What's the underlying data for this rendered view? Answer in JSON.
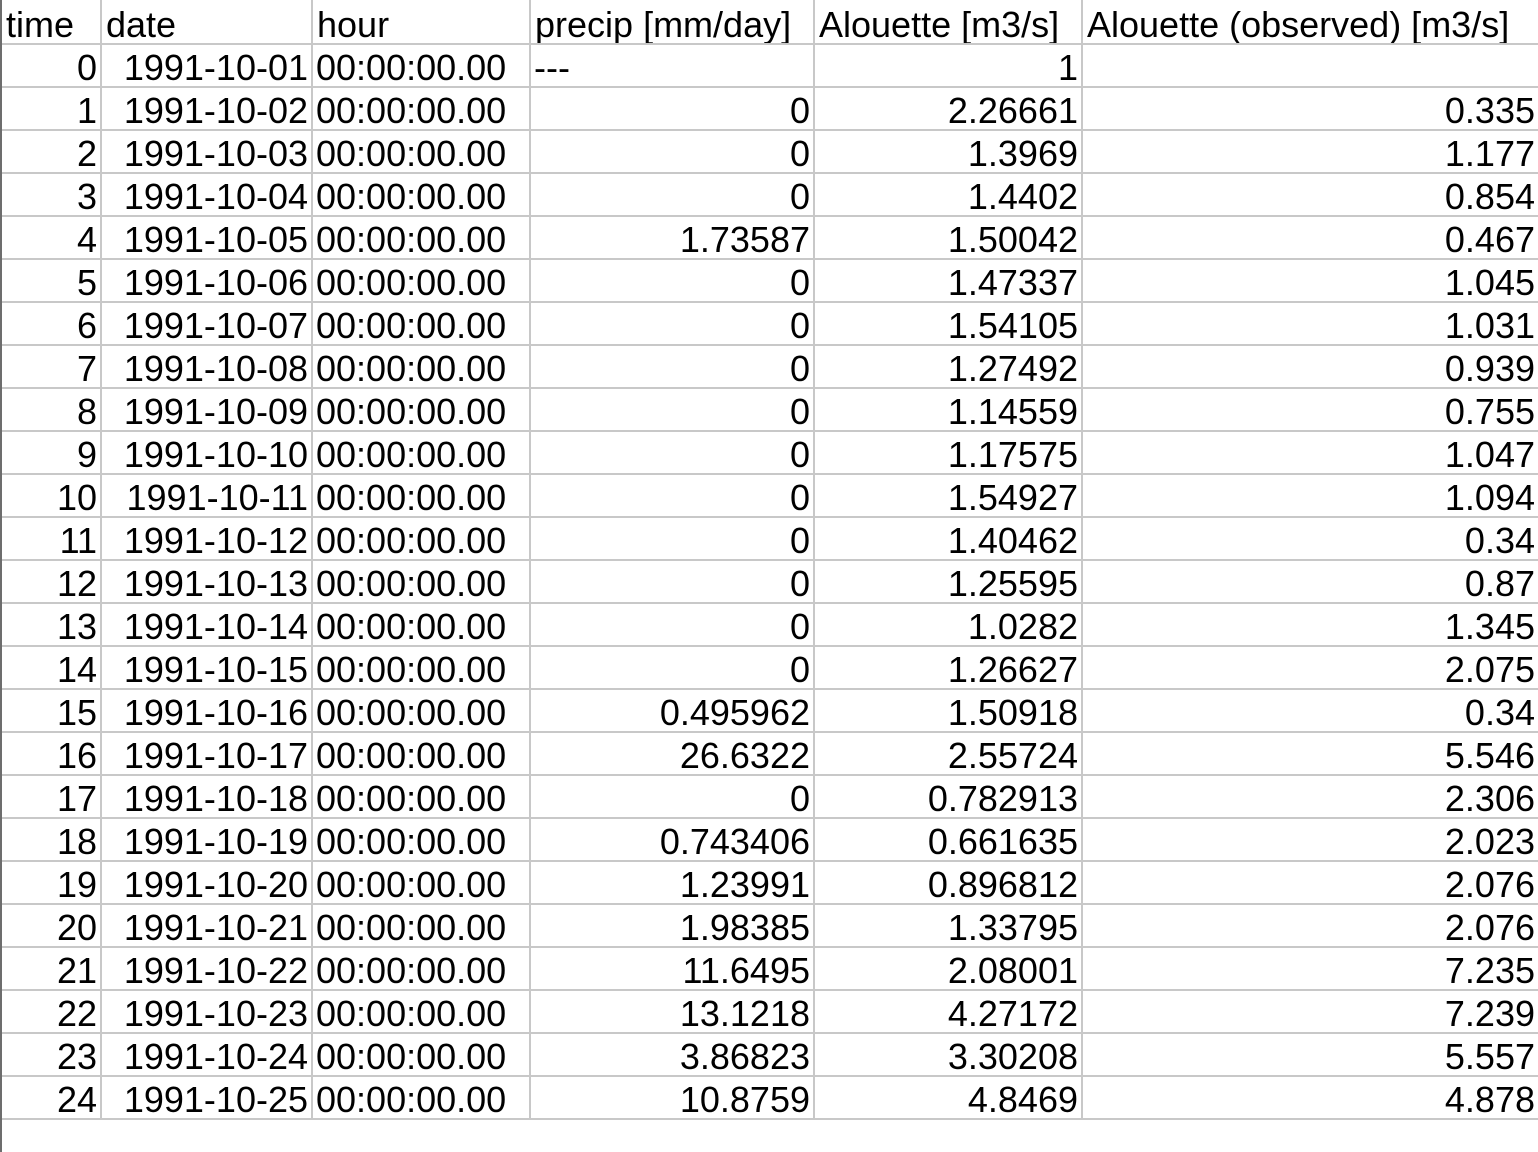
{
  "spreadsheet": {
    "columns": [
      {
        "key": "time",
        "label": "time"
      },
      {
        "key": "date",
        "label": "date"
      },
      {
        "key": "hour",
        "label": "hour"
      },
      {
        "key": "precip",
        "label": "precip [mm/day]",
        "spell_word": "precip",
        "rest": " [mm/day]"
      },
      {
        "key": "sim",
        "label": "Alouette [m3/s]",
        "spell_word": "Alouette",
        "rest": " [m3/s]"
      },
      {
        "key": "obs",
        "label": "Alouette (observed) [m3/s]",
        "spell_word": "Alouette",
        "rest": " (observed) [m3/s]"
      }
    ],
    "rows": [
      {
        "time": "0",
        "date": "1991-10-01",
        "hour": "00:00:00.00",
        "precip": "---",
        "sim": "1",
        "obs": ""
      },
      {
        "time": "1",
        "date": "1991-10-02",
        "hour": "00:00:00.00",
        "precip": "0",
        "sim": "2.26661",
        "obs": "0.335"
      },
      {
        "time": "2",
        "date": "1991-10-03",
        "hour": "00:00:00.00",
        "precip": "0",
        "sim": "1.3969",
        "obs": "1.177"
      },
      {
        "time": "3",
        "date": "1991-10-04",
        "hour": "00:00:00.00",
        "precip": "0",
        "sim": "1.4402",
        "obs": "0.854"
      },
      {
        "time": "4",
        "date": "1991-10-05",
        "hour": "00:00:00.00",
        "precip": "1.73587",
        "sim": "1.50042",
        "obs": "0.467"
      },
      {
        "time": "5",
        "date": "1991-10-06",
        "hour": "00:00:00.00",
        "precip": "0",
        "sim": "1.47337",
        "obs": "1.045"
      },
      {
        "time": "6",
        "date": "1991-10-07",
        "hour": "00:00:00.00",
        "precip": "0",
        "sim": "1.54105",
        "obs": "1.031"
      },
      {
        "time": "7",
        "date": "1991-10-08",
        "hour": "00:00:00.00",
        "precip": "0",
        "sim": "1.27492",
        "obs": "0.939"
      },
      {
        "time": "8",
        "date": "1991-10-09",
        "hour": "00:00:00.00",
        "precip": "0",
        "sim": "1.14559",
        "obs": "0.755"
      },
      {
        "time": "9",
        "date": "1991-10-10",
        "hour": "00:00:00.00",
        "precip": "0",
        "sim": "1.17575",
        "obs": "1.047"
      },
      {
        "time": "10",
        "date": "1991-10-11",
        "hour": "00:00:00.00",
        "precip": "0",
        "sim": "1.54927",
        "obs": "1.094"
      },
      {
        "time": "11",
        "date": "1991-10-12",
        "hour": "00:00:00.00",
        "precip": "0",
        "sim": "1.40462",
        "obs": "0.34"
      },
      {
        "time": "12",
        "date": "1991-10-13",
        "hour": "00:00:00.00",
        "precip": "0",
        "sim": "1.25595",
        "obs": "0.87"
      },
      {
        "time": "13",
        "date": "1991-10-14",
        "hour": "00:00:00.00",
        "precip": "0",
        "sim": "1.0282",
        "obs": "1.345"
      },
      {
        "time": "14",
        "date": "1991-10-15",
        "hour": "00:00:00.00",
        "precip": "0",
        "sim": "1.26627",
        "obs": "2.075"
      },
      {
        "time": "15",
        "date": "1991-10-16",
        "hour": "00:00:00.00",
        "precip": "0.495962",
        "sim": "1.50918",
        "obs": "0.34"
      },
      {
        "time": "16",
        "date": "1991-10-17",
        "hour": "00:00:00.00",
        "precip": "26.6322",
        "sim": "2.55724",
        "obs": "5.546"
      },
      {
        "time": "17",
        "date": "1991-10-18",
        "hour": "00:00:00.00",
        "precip": "0",
        "sim": "0.782913",
        "obs": "2.306"
      },
      {
        "time": "18",
        "date": "1991-10-19",
        "hour": "00:00:00.00",
        "precip": "0.743406",
        "sim": "0.661635",
        "obs": "2.023"
      },
      {
        "time": "19",
        "date": "1991-10-20",
        "hour": "00:00:00.00",
        "precip": "1.23991",
        "sim": "0.896812",
        "obs": "2.076"
      },
      {
        "time": "20",
        "date": "1991-10-21",
        "hour": "00:00:00.00",
        "precip": "1.98385",
        "sim": "1.33795",
        "obs": "2.076"
      },
      {
        "time": "21",
        "date": "1991-10-22",
        "hour": "00:00:00.00",
        "precip": "11.6495",
        "sim": "2.08001",
        "obs": "7.235"
      },
      {
        "time": "22",
        "date": "1991-10-23",
        "hour": "00:00:00.00",
        "precip": "13.1218",
        "sim": "4.27172",
        "obs": "7.239"
      },
      {
        "time": "23",
        "date": "1991-10-24",
        "hour": "00:00:00.00",
        "precip": "3.86823",
        "sim": "3.30208",
        "obs": "5.557"
      },
      {
        "time": "24",
        "date": "1991-10-25",
        "hour": "00:00:00.00",
        "precip": "10.8759",
        "sim": "4.8469",
        "obs": "4.878"
      }
    ]
  },
  "colors": {
    "gridline": "#c8c8c8",
    "spellcheck_underline": "#e0403a",
    "text": "#000000",
    "background": "#ffffff"
  }
}
